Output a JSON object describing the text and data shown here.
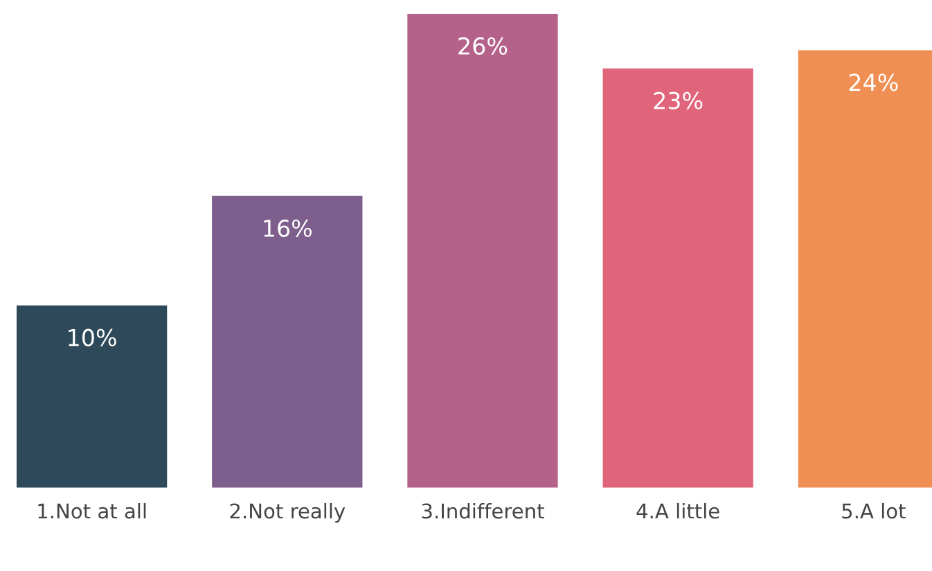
{
  "chart_data": {
    "type": "bar",
    "categories": [
      "1.Not at all",
      "2.Not really",
      "3.Indifferent",
      "4.A little",
      "5.A lot"
    ],
    "values": [
      10,
      16,
      26,
      23,
      24
    ],
    "value_labels": [
      "10%",
      "16%",
      "26%",
      "23%",
      "24%"
    ],
    "colors": [
      "#2e4a5a",
      "#7d5e8c",
      "#b5628a",
      "#e0647a",
      "#f08f54"
    ],
    "grid": false,
    "legend": false
  }
}
